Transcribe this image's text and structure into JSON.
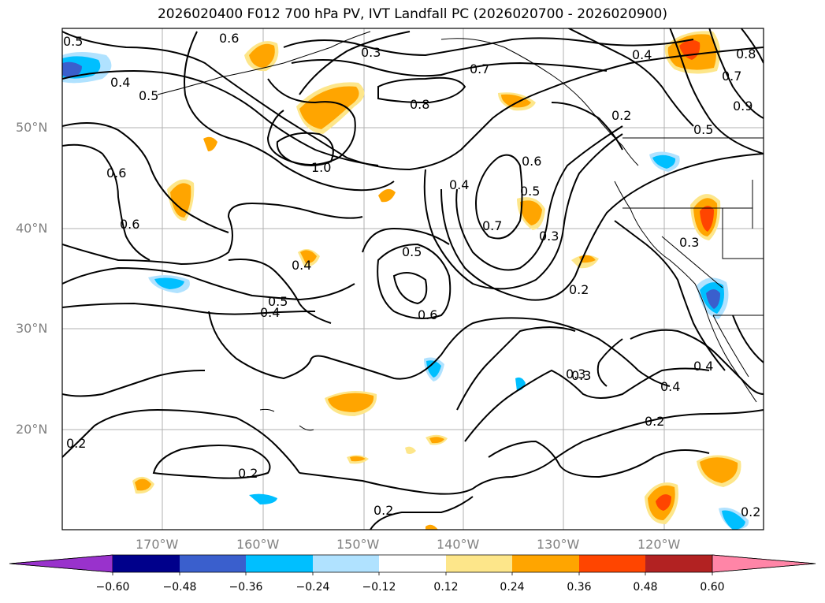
{
  "title": "2026020400 F012 700 hPa PV, IVT Landfall PC (2026020700 - 2026020900)",
  "map": {
    "lon_ticks": [
      "170°W",
      "160°W",
      "150°W",
      "140°W",
      "130°W",
      "120°W"
    ],
    "lat_ticks": [
      "50°N",
      "40°N",
      "30°N",
      "20°N"
    ],
    "contour_labels": [
      "0.5",
      "0.6",
      "0.3",
      "0.7",
      "0.4",
      "0.8",
      "0.5",
      "1.0",
      "0.4",
      "0.2",
      "0.8",
      "0.7",
      "0.6",
      "0.5",
      "0.9",
      "0.5",
      "0.6",
      "0.4",
      "0.7",
      "0.6",
      "0.3",
      "0.5",
      "0.4",
      "0.3",
      "0.5",
      "0.4",
      "0.6",
      "0.4",
      "0.2",
      "0.3",
      "0.4",
      "0.2",
      "0.3",
      "0.2",
      "0.2",
      "0.2",
      "0.2"
    ]
  },
  "colorbar": {
    "ticks": [
      "−0.60",
      "−0.48",
      "−0.36",
      "−0.24",
      "−0.12",
      "0.12",
      "0.24",
      "0.36",
      "0.48",
      "0.60"
    ],
    "colors": [
      "#9932cc",
      "#00008b",
      "#3a5fcd",
      "#00bfff",
      "#b0e2ff",
      "#ffffff",
      "#fde68a",
      "#ffa500",
      "#ff4500",
      "#b22222",
      "#ff85a7"
    ]
  }
}
